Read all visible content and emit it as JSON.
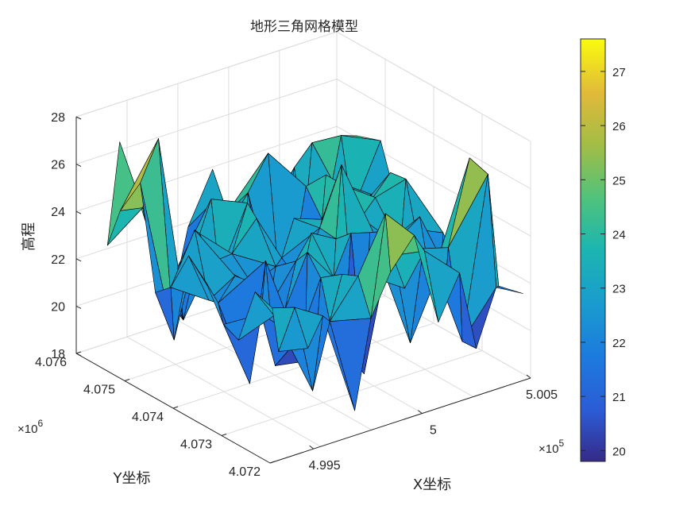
{
  "chart_data": {
    "type": "surface",
    "title": "地形三角网格模型",
    "xlabel": "X坐标",
    "ylabel": "Y坐标",
    "zlabel": "高程",
    "x_ticks": [
      "4.995",
      "5",
      "5.005"
    ],
    "x_multiplier": "×10",
    "x_multiplier_exp": "5",
    "y_ticks": [
      "4.072",
      "4.073",
      "4.074",
      "4.075",
      "4.076"
    ],
    "y_multiplier": "×10",
    "y_multiplier_exp": "6",
    "z_ticks": [
      "18",
      "20",
      "22",
      "24",
      "26",
      "28"
    ],
    "xlim": [
      499300,
      500500
    ],
    "ylim": [
      4072000,
      4076000
    ],
    "zlim": [
      18,
      28
    ],
    "colorbar": {
      "colormap": "parula",
      "range": [
        19.8,
        27.6
      ],
      "ticks": [
        "20",
        "21",
        "22",
        "23",
        "24",
        "25",
        "26",
        "27"
      ]
    },
    "grid": true,
    "peak_point": {
      "x": 499500,
      "y": 4075200,
      "z": 27.4
    }
  }
}
